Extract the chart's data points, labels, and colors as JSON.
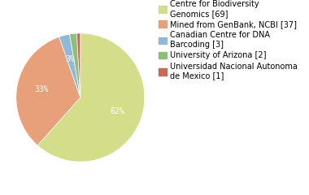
{
  "labels": [
    "Centre for Biodiversity\nGenomics [69]",
    "Mined from GenBank, NCBI [37]",
    "Canadian Centre for DNA\nBarcoding [3]",
    "University of Arizona [2]",
    "Universidad Nacional Autonoma\nde Mexico [1]"
  ],
  "values": [
    69,
    37,
    3,
    2,
    1
  ],
  "colors": [
    "#d4de8a",
    "#e8a07a",
    "#92b8d8",
    "#8dbf7a",
    "#cc6655"
  ],
  "background_color": "#ffffff",
  "pct_fontsize": 7,
  "legend_fontsize": 7
}
